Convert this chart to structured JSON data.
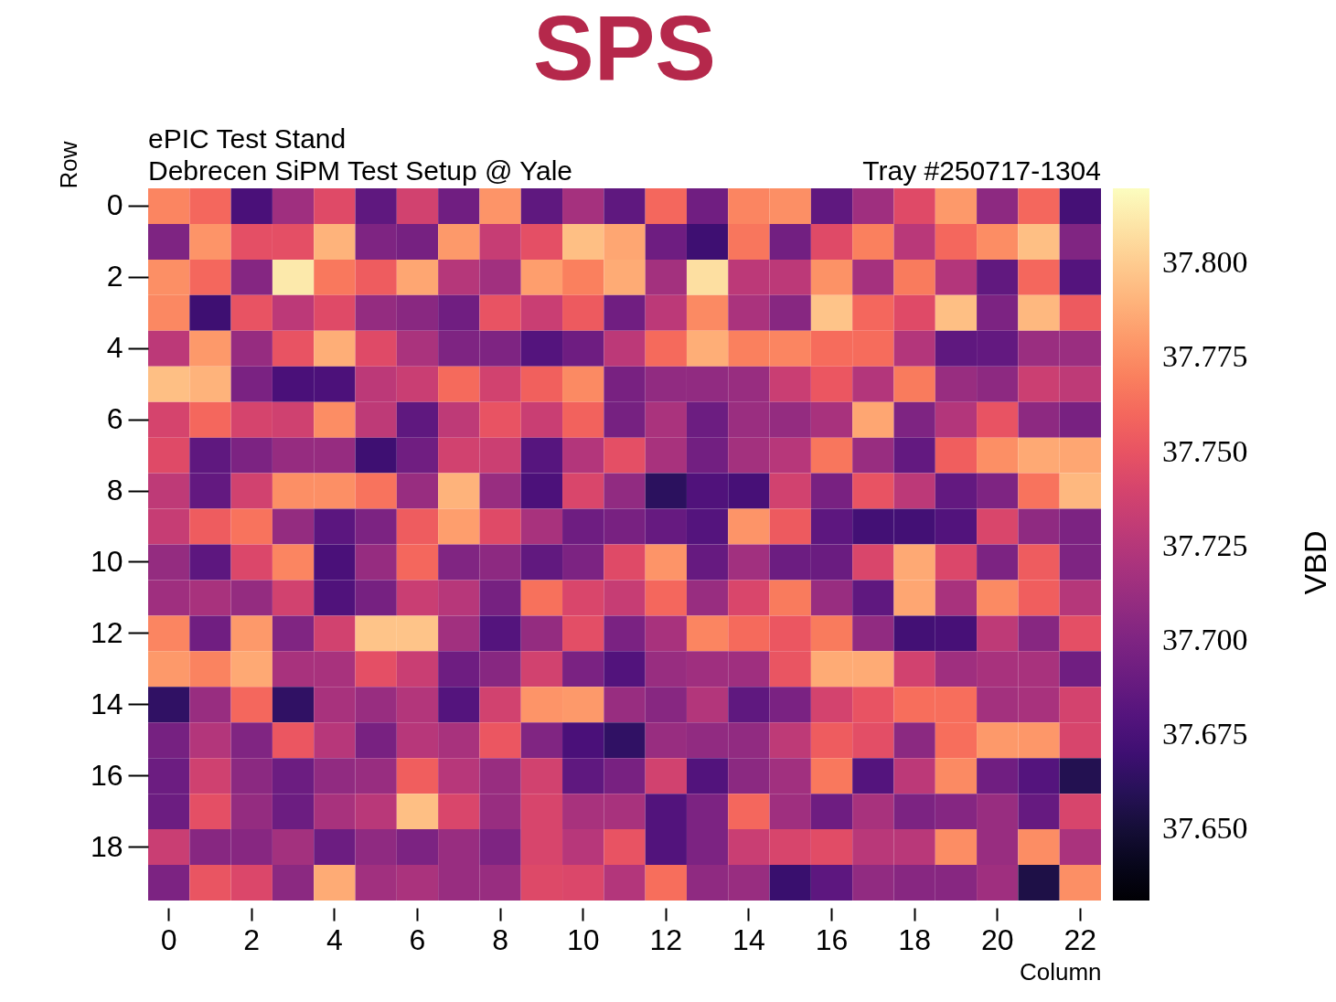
{
  "chart_data": {
    "type": "heatmap",
    "title": "SPS",
    "annotations": [
      "ePIC Test Stand",
      "Debrecen SiPM Test Setup @ Yale",
      "Tray #250717-1304"
    ],
    "xlabel": "Column",
    "ylabel": "Row",
    "clabel": "VBD",
    "categories": [
      "0",
      null,
      "2",
      null,
      "4",
      null,
      "6",
      null,
      "8",
      null,
      "10",
      null,
      "12",
      null,
      "14",
      null,
      "16",
      null,
      "18",
      null,
      "20",
      null,
      "22"
    ],
    "y_categories": [
      "0",
      null,
      "2",
      null,
      "4",
      null,
      "6",
      null,
      "8",
      null,
      "10",
      null,
      "12",
      null,
      "14",
      null,
      "16",
      null,
      "18",
      null
    ],
    "clim": [
      37.631,
      37.82
    ],
    "cticks": [
      {
        "value": 37.65,
        "label": "37.650"
      },
      37.675,
      {
        "value": 37.7,
        "label": "37.700"
      },
      37.725,
      {
        "value": 37.75,
        "label": "37.750"
      },
      37.775,
      {
        "value": 37.8,
        "label": "37.800"
      }
    ],
    "cells": [
      [
        37.772,
        37.76,
        37.675,
        37.715,
        37.745,
        37.685,
        37.738,
        37.693,
        37.778,
        37.685,
        37.718,
        37.685,
        37.76,
        37.693,
        37.772,
        37.776,
        37.685,
        37.715,
        37.745,
        37.78,
        37.707,
        37.76,
        37.673
      ],
      [
        37.7,
        37.778,
        37.748,
        37.748,
        37.79,
        37.7,
        37.696,
        37.78,
        37.733,
        37.748,
        37.795,
        37.785,
        37.692,
        37.67,
        37.766,
        37.694,
        37.745,
        37.77,
        37.727,
        37.76,
        37.775,
        37.795,
        37.701
      ],
      [
        37.776,
        37.76,
        37.703,
        37.812,
        37.767,
        37.755,
        37.785,
        37.725,
        37.716,
        37.782,
        37.77,
        37.787,
        37.717,
        37.808,
        37.728,
        37.728,
        37.777,
        37.718,
        37.768,
        37.724,
        37.686,
        37.76,
        37.68
      ],
      [
        37.773,
        37.67,
        37.75,
        37.728,
        37.745,
        37.71,
        37.705,
        37.693,
        37.75,
        37.734,
        37.754,
        37.693,
        37.728,
        37.774,
        37.72,
        37.704,
        37.797,
        37.76,
        37.745,
        37.795,
        37.699,
        37.792,
        37.754
      ],
      [
        37.728,
        37.78,
        37.711,
        37.75,
        37.788,
        37.745,
        37.72,
        37.7,
        37.7,
        37.68,
        37.692,
        37.728,
        37.761,
        37.788,
        37.77,
        37.772,
        37.762,
        37.762,
        37.724,
        37.685,
        37.687,
        37.713,
        37.713
      ],
      [
        37.795,
        37.79,
        37.698,
        37.675,
        37.676,
        37.728,
        37.734,
        37.761,
        37.738,
        37.757,
        37.774,
        37.697,
        37.709,
        37.709,
        37.712,
        37.734,
        37.752,
        37.724,
        37.768,
        37.712,
        37.707,
        37.735,
        37.729
      ],
      [
        37.74,
        37.76,
        37.74,
        37.737,
        37.775,
        37.729,
        37.685,
        37.729,
        37.75,
        37.734,
        37.758,
        37.696,
        37.72,
        37.691,
        37.713,
        37.71,
        37.719,
        37.785,
        37.7,
        37.724,
        37.75,
        37.707,
        37.697
      ],
      [
        37.745,
        37.685,
        37.699,
        37.711,
        37.711,
        37.67,
        37.693,
        37.738,
        37.735,
        37.681,
        37.724,
        37.748,
        37.719,
        37.694,
        37.717,
        37.726,
        37.766,
        37.712,
        37.687,
        37.756,
        37.776,
        37.786,
        37.785
      ],
      [
        37.729,
        37.687,
        37.738,
        37.776,
        37.776,
        37.765,
        37.712,
        37.79,
        37.712,
        37.676,
        37.742,
        37.709,
        37.662,
        37.678,
        37.674,
        37.738,
        37.697,
        37.75,
        37.728,
        37.687,
        37.7,
        37.765,
        37.792
      ],
      [
        37.733,
        37.755,
        37.765,
        37.71,
        37.683,
        37.699,
        37.755,
        37.782,
        37.745,
        37.719,
        37.692,
        37.697,
        37.688,
        37.68,
        37.778,
        37.754,
        37.684,
        37.672,
        37.672,
        37.679,
        37.742,
        37.708,
        37.699
      ],
      [
        37.71,
        37.684,
        37.743,
        37.772,
        37.675,
        37.711,
        37.76,
        37.701,
        37.707,
        37.686,
        37.699,
        37.745,
        37.778,
        37.688,
        37.716,
        37.691,
        37.69,
        37.742,
        37.786,
        37.743,
        37.699,
        37.755,
        37.7
      ],
      [
        37.715,
        37.719,
        37.71,
        37.738,
        37.678,
        37.696,
        37.734,
        37.726,
        37.696,
        37.764,
        37.742,
        37.733,
        37.76,
        37.712,
        37.742,
        37.768,
        37.712,
        37.685,
        37.785,
        37.719,
        37.774,
        37.756,
        37.725
      ],
      [
        37.772,
        37.693,
        37.78,
        37.701,
        37.738,
        37.797,
        37.797,
        37.716,
        37.68,
        37.71,
        37.747,
        37.698,
        37.719,
        37.772,
        37.761,
        37.752,
        37.768,
        37.709,
        37.672,
        37.674,
        37.729,
        37.704,
        37.748
      ],
      [
        37.78,
        37.771,
        37.786,
        37.719,
        37.719,
        37.748,
        37.734,
        37.692,
        37.704,
        37.738,
        37.698,
        37.679,
        37.712,
        37.715,
        37.715,
        37.751,
        37.787,
        37.787,
        37.738,
        37.715,
        37.719,
        37.719,
        37.693
      ],
      [
        37.664,
        37.712,
        37.76,
        37.664,
        37.719,
        37.712,
        37.724,
        37.68,
        37.738,
        37.778,
        37.78,
        37.712,
        37.704,
        37.724,
        37.685,
        37.698,
        37.739,
        37.75,
        37.763,
        37.763,
        37.717,
        37.719,
        37.739
      ],
      [
        37.696,
        37.724,
        37.701,
        37.752,
        37.726,
        37.697,
        37.726,
        37.719,
        37.752,
        37.701,
        37.675,
        37.664,
        37.712,
        37.709,
        37.709,
        37.729,
        37.755,
        37.747,
        37.706,
        37.763,
        37.78,
        37.779,
        37.741
      ],
      [
        37.691,
        37.737,
        37.706,
        37.691,
        37.709,
        37.712,
        37.756,
        37.726,
        37.712,
        37.738,
        37.685,
        37.697,
        37.738,
        37.679,
        37.706,
        37.716,
        37.767,
        37.68,
        37.728,
        37.774,
        37.693,
        37.68,
        37.658
      ],
      [
        37.691,
        37.748,
        37.71,
        37.691,
        37.719,
        37.727,
        37.795,
        37.742,
        37.712,
        37.741,
        37.719,
        37.719,
        37.679,
        37.699,
        37.76,
        37.715,
        37.692,
        37.719,
        37.699,
        37.703,
        37.712,
        37.688,
        37.741
      ],
      [
        37.734,
        37.704,
        37.704,
        37.717,
        37.691,
        37.708,
        37.699,
        37.712,
        37.7,
        37.741,
        37.726,
        37.75,
        37.679,
        37.699,
        37.734,
        37.741,
        37.746,
        37.727,
        37.727,
        37.775,
        37.712,
        37.775,
        37.72
      ],
      [
        37.699,
        37.751,
        37.743,
        37.706,
        37.787,
        37.716,
        37.72,
        37.712,
        37.712,
        37.744,
        37.743,
        37.724,
        37.763,
        37.708,
        37.712,
        37.668,
        37.684,
        37.709,
        37.704,
        37.704,
        37.715,
        37.655,
        37.776
      ]
    ]
  }
}
